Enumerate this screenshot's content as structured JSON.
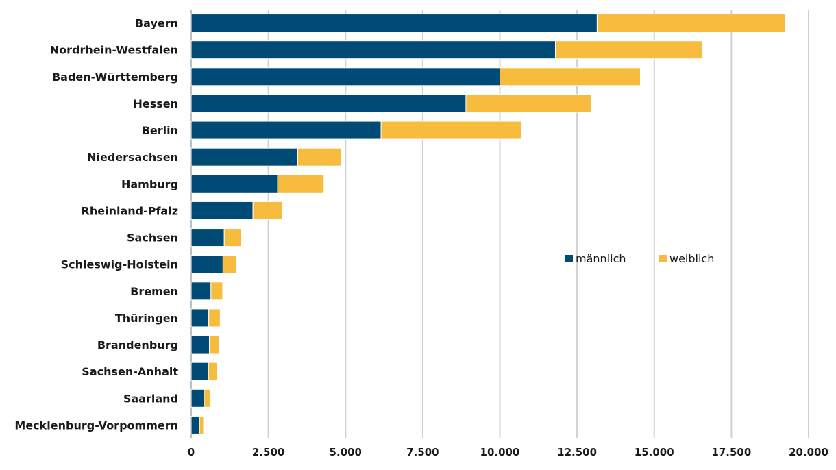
{
  "chart_data": {
    "type": "bar",
    "orientation": "horizontal",
    "stacked": true,
    "title": "",
    "xlabel": "",
    "ylabel": "",
    "xlim": [
      0,
      20000
    ],
    "x_ticks": [
      0,
      2500,
      5000,
      7500,
      10000,
      12500,
      15000,
      17500,
      20000
    ],
    "x_tick_labels": [
      "0",
      "2.500",
      "5.000",
      "7.500",
      "10.000",
      "12.500",
      "15.000",
      "17.500",
      "20.000"
    ],
    "grid": "vertical",
    "legend_position": "center-right",
    "categories": [
      "Bayern",
      "Nordrhein-Westfalen",
      "Baden-Württemberg",
      "Hessen",
      "Berlin",
      "Niedersachsen",
      "Hamburg",
      "Rheinland-Pfalz",
      "Sachsen",
      "Schleswig-Holstein",
      "Bremen",
      "Thüringen",
      "Brandenburg",
      "Sachsen-Anhalt",
      "Saarland",
      "Mecklenburg-Vorpommern"
    ],
    "series": [
      {
        "name": "männlich",
        "color": "#004b76",
        "values": [
          13150,
          11800,
          10000,
          8900,
          6150,
          3450,
          2800,
          2000,
          1070,
          1030,
          640,
          570,
          590,
          560,
          420,
          270
        ]
      },
      {
        "name": "weiblich",
        "color": "#f7bb3d",
        "values": [
          6100,
          4750,
          4550,
          4050,
          4550,
          1400,
          1500,
          950,
          550,
          430,
          380,
          370,
          330,
          280,
          190,
          130
        ]
      }
    ]
  }
}
